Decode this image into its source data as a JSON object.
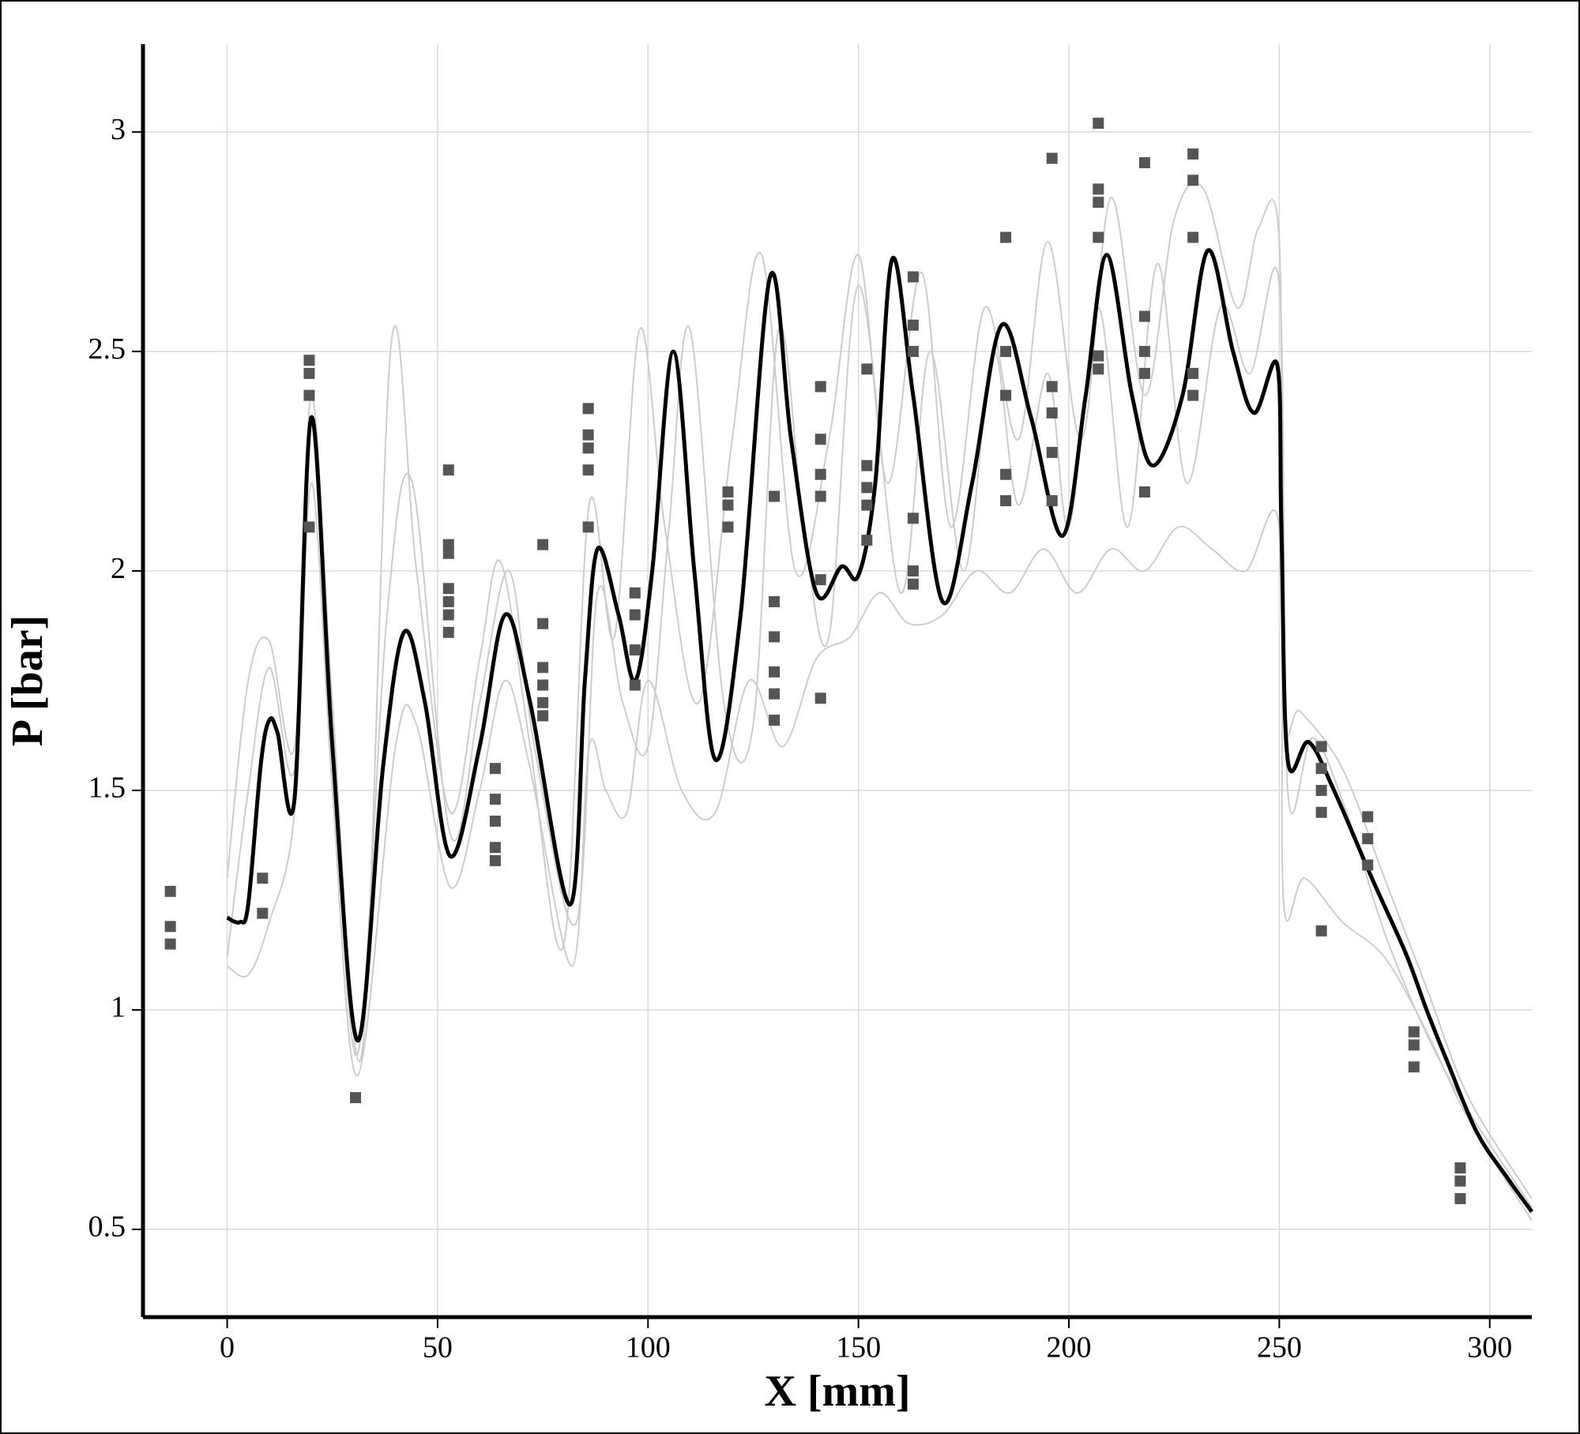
{
  "chart_data": {
    "type": "line",
    "xlabel": "X [mm]",
    "ylabel": "P [bar]",
    "xlim": [
      -20,
      310
    ],
    "ylim": [
      0.3,
      3.2
    ],
    "xticks": [
      0,
      50,
      100,
      150,
      200,
      250,
      300
    ],
    "yticks": [
      0.5,
      1,
      1.5,
      2,
      2.5,
      3
    ],
    "grid": true,
    "series": [
      {
        "type": "line",
        "color": "#cccccc",
        "x": [
          0,
          5,
          10,
          16,
          20,
          25,
          32,
          39,
          45,
          53,
          60,
          65,
          72,
          80,
          86,
          92,
          98,
          104,
          112,
          120,
          127,
          135,
          143,
          150,
          157,
          165,
          172,
          180,
          188,
          195,
          203,
          210,
          218,
          225,
          232,
          240,
          245,
          250,
          251,
          255,
          265,
          275,
          285,
          295,
          310
        ],
        "values": [
          1.3,
          1.75,
          1.84,
          1.6,
          2.4,
          1.7,
          0.9,
          2.52,
          2.0,
          1.45,
          1.8,
          2.02,
          1.6,
          1.15,
          2.15,
          1.85,
          2.55,
          2.1,
          1.7,
          2.3,
          2.72,
          2.0,
          2.3,
          2.72,
          2.2,
          2.68,
          2.1,
          2.6,
          2.3,
          2.75,
          2.3,
          2.85,
          2.4,
          2.8,
          2.87,
          2.6,
          2.78,
          2.75,
          1.7,
          1.68,
          1.55,
          1.3,
          1.05,
          0.8,
          0.57
        ]
      },
      {
        "type": "line",
        "color": "#cccccc",
        "x": [
          0,
          5,
          10,
          16,
          20,
          25,
          31,
          40,
          45,
          53,
          60,
          66,
          72,
          82,
          86,
          90,
          95,
          100,
          108,
          116,
          124,
          132,
          140,
          148,
          155,
          162,
          170,
          178,
          186,
          194,
          202,
          210,
          218,
          226,
          234,
          242,
          250,
          251,
          256,
          265,
          275,
          285,
          295,
          310
        ],
        "values": [
          1.1,
          1.08,
          1.2,
          1.45,
          2.2,
          1.5,
          0.85,
          1.6,
          1.65,
          1.28,
          1.5,
          1.75,
          1.55,
          1.1,
          1.6,
          1.5,
          1.45,
          1.75,
          1.5,
          1.45,
          1.75,
          1.6,
          1.8,
          1.85,
          1.95,
          1.88,
          1.9,
          2.0,
          1.95,
          2.05,
          1.95,
          2.05,
          2.0,
          2.1,
          2.05,
          2.0,
          2.1,
          1.25,
          1.3,
          1.2,
          1.12,
          0.95,
          0.75,
          0.52
        ]
      },
      {
        "type": "line",
        "color": "#cccccc",
        "x": [
          0,
          5,
          10,
          16,
          20,
          25,
          31,
          38,
          44,
          53,
          60,
          67,
          73,
          83,
          88,
          94,
          100,
          105,
          110,
          118,
          125,
          131,
          137,
          143,
          150,
          160,
          167,
          175,
          182,
          188,
          195,
          200,
          207,
          214,
          221,
          228,
          236,
          243,
          250,
          252,
          258,
          266,
          276,
          290,
          310
        ],
        "values": [
          1.12,
          1.5,
          1.78,
          1.55,
          2.35,
          1.6,
          0.9,
          1.9,
          2.2,
          1.4,
          1.7,
          2.0,
          1.6,
          1.2,
          1.95,
          1.7,
          1.6,
          2.1,
          2.55,
          1.7,
          1.65,
          2.55,
          2.1,
          1.85,
          2.65,
          1.95,
          2.5,
          2.0,
          2.5,
          2.15,
          2.45,
          2.1,
          2.6,
          2.1,
          2.7,
          2.2,
          2.6,
          2.45,
          2.65,
          1.5,
          1.62,
          1.45,
          1.15,
          0.85,
          0.55
        ]
      },
      {
        "type": "line",
        "color": "#000000",
        "x": [
          0,
          3,
          5,
          8,
          10,
          12,
          16,
          20,
          25,
          31,
          37,
          42,
          47,
          53,
          60,
          66,
          72,
          81.5,
          85,
          88,
          93,
          97,
          101,
          106,
          111,
          116,
          122,
          129,
          134,
          140,
          146,
          150,
          154,
          158,
          163,
          170,
          177,
          184,
          191,
          198.5,
          204,
          209,
          215,
          220,
          227,
          233,
          239,
          244,
          249.5,
          250.5,
          252,
          257,
          263,
          272,
          280,
          285,
          290,
          297,
          304,
          310
        ],
        "values": [
          1.21,
          1.2,
          1.24,
          1.56,
          1.66,
          1.63,
          1.48,
          2.35,
          1.6,
          0.93,
          1.55,
          1.86,
          1.7,
          1.35,
          1.6,
          1.9,
          1.7,
          1.24,
          1.75,
          2.05,
          1.9,
          1.75,
          2.0,
          2.5,
          2.0,
          1.57,
          1.9,
          2.67,
          2.3,
          1.95,
          2.01,
          1.99,
          2.2,
          2.71,
          2.4,
          1.93,
          2.2,
          2.56,
          2.35,
          2.08,
          2.4,
          2.72,
          2.4,
          2.24,
          2.4,
          2.73,
          2.5,
          2.36,
          2.47,
          2.1,
          1.57,
          1.61,
          1.5,
          1.3,
          1.13,
          1.0,
          0.88,
          0.72,
          0.62,
          0.54
        ]
      },
      {
        "type": "scatter",
        "color": "#555555",
        "x": [
          -13.5,
          -13.5,
          -13.5,
          8.4,
          8.4,
          19.5,
          19.5,
          19.5,
          19.5,
          30.5,
          52.6,
          52.6,
          52.6,
          52.6,
          52.6,
          52.6,
          52.6,
          63.7,
          63.7,
          63.7,
          63.7,
          63.7,
          75,
          75,
          75,
          75,
          75,
          75,
          85.8,
          85.8,
          85.8,
          85.8,
          85.8,
          96.9,
          96.9,
          96.9,
          96.9,
          119,
          119,
          119,
          130,
          130,
          130,
          130,
          130,
          130,
          141,
          141,
          141,
          141,
          141,
          141,
          152,
          152,
          152,
          152,
          152,
          163,
          163,
          163,
          163,
          163,
          163,
          185,
          185,
          185,
          185,
          185,
          196,
          196,
          196,
          196,
          196,
          207,
          207,
          207,
          207,
          207,
          207,
          218,
          218,
          218,
          218,
          218,
          229.5,
          229.5,
          229.5,
          229.5,
          229.5,
          260,
          260,
          260,
          260,
          260,
          271,
          271,
          271,
          282,
          282,
          282,
          293,
          293,
          293
        ],
        "values": [
          1.27,
          1.19,
          1.15,
          1.3,
          1.22,
          2.48,
          2.45,
          2.4,
          2.1,
          0.8,
          2.23,
          2.06,
          2.04,
          1.96,
          1.93,
          1.9,
          1.86,
          1.55,
          1.48,
          1.43,
          1.37,
          1.34,
          2.06,
          1.88,
          1.78,
          1.74,
          1.7,
          1.67,
          2.37,
          2.31,
          2.28,
          2.23,
          2.1,
          1.95,
          1.9,
          1.82,
          1.74,
          2.18,
          2.15,
          2.1,
          2.17,
          1.93,
          1.85,
          1.77,
          1.72,
          1.66,
          2.42,
          2.3,
          2.22,
          2.17,
          1.98,
          1.71,
          2.46,
          2.24,
          2.19,
          2.15,
          2.07,
          2.67,
          2.56,
          2.5,
          2.12,
          2.0,
          1.97,
          2.76,
          2.5,
          2.4,
          2.22,
          2.16,
          2.94,
          2.42,
          2.36,
          2.27,
          2.16,
          3.02,
          2.87,
          2.84,
          2.76,
          2.49,
          2.46,
          2.93,
          2.58,
          2.5,
          2.45,
          2.18,
          2.95,
          2.89,
          2.76,
          2.45,
          2.4,
          1.6,
          1.55,
          1.5,
          1.45,
          1.18,
          1.44,
          1.39,
          1.33,
          0.95,
          0.92,
          0.87,
          0.64,
          0.61,
          0.57
        ]
      }
    ]
  }
}
